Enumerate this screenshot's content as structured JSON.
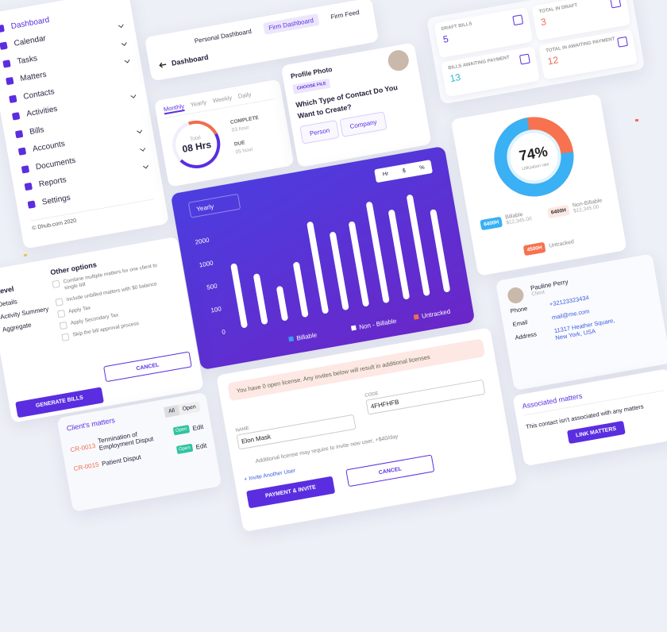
{
  "sidebar": {
    "items": [
      "Dashboard",
      "Calendar",
      "Tasks",
      "Matters",
      "Contacts",
      "Activities",
      "Bills",
      "Accounts",
      "Documents",
      "Reports",
      "Settings"
    ],
    "footer": "© Dhub.com 2020"
  },
  "header": {
    "back": "Dashboard",
    "tabs": [
      "Personal Dashboard",
      "Firm Dashboard",
      "Firm Feed"
    ]
  },
  "time_card": {
    "tabs": [
      "Monthly",
      "Yearly",
      "Weekly",
      "Daily"
    ],
    "center_label": "Total",
    "center_value": "08 Hrs",
    "complete_label": "COMPLETE",
    "complete_value": "03 hour",
    "due_label": "DUE",
    "due_value": "05 hour"
  },
  "profile": {
    "photo_label": "Profile Photo",
    "choose_file": "CHOOSE FILE",
    "question": "Which Type of Contact Do You Want to Create?",
    "options": [
      "Person",
      "Company"
    ]
  },
  "bills": [
    {
      "label": "DRAFT BILLS",
      "value": 5
    },
    {
      "label": "TOTAL IN DRAFT",
      "value": 3
    },
    {
      "label": "BILLS AWAITING PAYMENT",
      "value": 13
    },
    {
      "label": "TOTAL IN AWAITING PAYMENT",
      "value": 12
    }
  ],
  "chart_controls": {
    "period": "Yearly",
    "units": [
      "Hr",
      "$",
      "%"
    ]
  },
  "chart_data": [
    {
      "type": "bar",
      "categories": [
        null,
        null,
        null,
        null,
        null,
        null,
        null,
        null,
        null,
        null,
        null
      ],
      "values": [
        900,
        600,
        300,
        700,
        2000,
        1400,
        1700,
        2400,
        1900,
        2400,
        1600
      ],
      "color": "#ffffff",
      "ylim": [
        0,
        2500
      ],
      "yticks": [
        0,
        100,
        500,
        1000,
        2000
      ],
      "legend": [
        {
          "name": "Billable",
          "color": "#3b9cf0"
        },
        {
          "name": "Non - Billable",
          "color": "#ffffff"
        },
        {
          "name": "Untracked",
          "color": "#f26d4f"
        }
      ]
    },
    {
      "type": "donut",
      "values": [
        74
      ],
      "value_labels": [
        "74%"
      ],
      "subtitle": "Utilization rate",
      "colors": [
        "#3ab0f5",
        "#f7724f"
      ],
      "legend": [
        {
          "value": "6400H",
          "name": "Billable",
          "detail": "$12,345.00"
        },
        {
          "value": "6400H",
          "name": "Non-Billable",
          "detail": "$12,345.00"
        },
        {
          "value": "4500H",
          "name": "Untracked"
        }
      ]
    }
  ],
  "options": {
    "level_title": "Level",
    "levels": [
      "Details",
      "Activity Summery",
      "Aggregate"
    ],
    "title": "Other options",
    "checks": [
      "Combine multiple matters for one client to single bill",
      "Include unbilled matters with $0 balance",
      "Apply Tax",
      "Apply Secondary Tax",
      "Skip the bill approval process"
    ],
    "generate": "GENERATE BILLS",
    "cancel": "CANCEL"
  },
  "matters": {
    "title": "Client's matters",
    "filters": [
      "All",
      "Open"
    ],
    "rows": [
      {
        "id": "CR-0013",
        "name": "Termination of Employment Disput",
        "status": "Open",
        "action": "Edit"
      },
      {
        "id": "CR-0015",
        "name": "Patient Disput",
        "status": "Open",
        "action": "Edit"
      }
    ]
  },
  "invite": {
    "alert": "You have 0 open license. Any invites below will result in additional licenses",
    "name_label": "NAME",
    "name_value": "Elon Mask",
    "code_label": "CODE",
    "code_value": "4FHFHFB",
    "note": "Additional license may require to invite new user, +$40/day",
    "link": "+ Invite Another User",
    "submit": "PAYMENT & INVITE",
    "cancel": "CANCEL"
  },
  "contact": {
    "name": "Pauline Perry",
    "role": "Client",
    "fields": [
      {
        "label": "Phone",
        "value": "+32123323434"
      },
      {
        "label": "Email",
        "value": "mail@me.com"
      },
      {
        "label": "Address",
        "value": "11317 Heather Square, New York, USA"
      }
    ]
  },
  "associated": {
    "title": "Associated matters",
    "text": "This contact isn't associated with any matters",
    "button": "LINK MATTERS"
  }
}
